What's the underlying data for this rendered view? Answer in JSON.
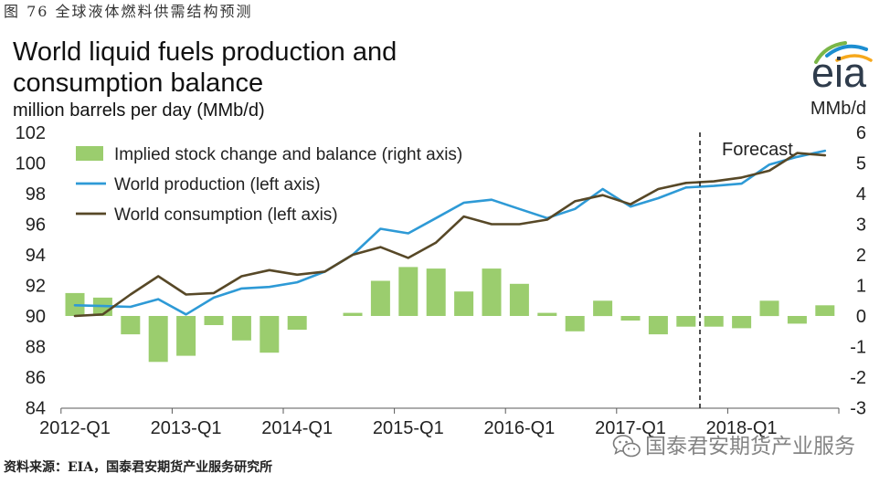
{
  "caption": "图 76 全球液体燃料供需结构预测",
  "logo": {
    "text": "eia"
  },
  "chart_data": {
    "type": "bar",
    "title": "World liquid fuels production and consumption balance",
    "subtitle": "million barrels per day (MMb/d)",
    "x": [
      [
        2012,
        1
      ],
      [
        2012,
        2
      ],
      [
        2012,
        3
      ],
      [
        2012,
        4
      ],
      [
        2013,
        1
      ],
      [
        2013,
        2
      ],
      [
        2013,
        3
      ],
      [
        2013,
        4
      ],
      [
        2014,
        1
      ],
      [
        2014,
        2
      ],
      [
        2014,
        3
      ],
      [
        2014,
        4
      ],
      [
        2015,
        1
      ],
      [
        2015,
        2
      ],
      [
        2015,
        3
      ],
      [
        2015,
        4
      ],
      [
        2016,
        1
      ],
      [
        2016,
        2
      ],
      [
        2016,
        3
      ],
      [
        2016,
        4
      ],
      [
        2017,
        1
      ],
      [
        2017,
        2
      ],
      [
        2017,
        3
      ],
      [
        2017,
        4
      ],
      [
        2018,
        1
      ],
      [
        2018,
        2
      ],
      [
        2018,
        3
      ],
      [
        2018,
        4
      ]
    ],
    "x_tick_labels": [
      "2012-Q1",
      "2013-Q1",
      "2014-Q1",
      "2015-Q1",
      "2016-Q1",
      "2017-Q1",
      "2018-Q1"
    ],
    "left_axis": {
      "ylim": [
        84,
        102
      ],
      "ticks": [
        84,
        86,
        88,
        90,
        92,
        94,
        96,
        98,
        100,
        102
      ]
    },
    "right_axis": {
      "label": "MMb/d",
      "ylim": [
        -3,
        6
      ],
      "ticks": [
        -3,
        -2,
        -1,
        0,
        1,
        2,
        3,
        4,
        5,
        6
      ]
    },
    "forecast": {
      "label": "Forecast",
      "start": [
        2017,
        4
      ]
    },
    "legend": "top-left",
    "grid": false,
    "series": [
      {
        "name": "Implied stock change and balance (right axis)",
        "type": "bar",
        "axis": "right",
        "color": "#9bcd6e",
        "values": [
          0.75,
          0.6,
          -0.6,
          -1.5,
          -1.3,
          -0.3,
          -0.8,
          -1.2,
          -0.45,
          0.0,
          0.1,
          1.15,
          1.6,
          1.55,
          0.8,
          1.55,
          1.05,
          0.1,
          -0.5,
          0.5,
          -0.15,
          -0.6,
          -0.35,
          -0.35,
          -0.4,
          0.5,
          -0.25,
          0.35
        ]
      },
      {
        "name": "World production (left axis)",
        "type": "line",
        "axis": "left",
        "color": "#2e9ad6",
        "values": [
          90.7,
          90.65,
          90.6,
          91.1,
          90.1,
          91.2,
          91.8,
          91.9,
          92.2,
          92.9,
          94.0,
          95.7,
          95.4,
          96.4,
          97.4,
          97.6,
          97.0,
          96.4,
          97.0,
          98.3,
          97.15,
          97.7,
          98.4,
          98.5,
          98.65,
          99.9,
          100.4,
          100.8
        ]
      },
      {
        "name": "World consumption (left axis)",
        "type": "line",
        "axis": "left",
        "color": "#574827",
        "values": [
          90.0,
          90.1,
          91.4,
          92.6,
          91.4,
          91.5,
          92.6,
          93.0,
          92.7,
          92.9,
          94.0,
          94.5,
          93.8,
          94.8,
          96.5,
          96.0,
          96.0,
          96.3,
          97.5,
          97.9,
          97.3,
          98.3,
          98.7,
          98.8,
          99.05,
          99.5,
          100.65,
          100.5
        ]
      }
    ]
  },
  "source": "资料来源：EIA，国泰君安期货产业服务研究所",
  "watermark": {
    "text": "国泰君安期货产业服务",
    "icon": "wechat-icon"
  }
}
